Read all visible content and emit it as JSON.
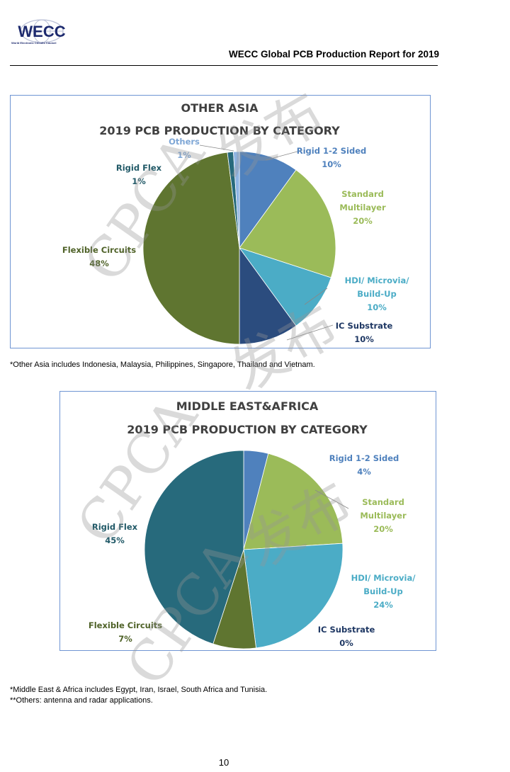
{
  "header": {
    "logo_text": "WECC",
    "logo_subtitle": "World Electronic Circuits Council",
    "title": "WECC Global PCB Production Report for 2019"
  },
  "watermark": {
    "text1": "CPCA",
    "text2": "发布"
  },
  "colors": {
    "rigid12": "#4F81BD",
    "standard": "#9BBB59",
    "hdi": "#4BACC6",
    "ic": "#2B4C7E",
    "flex": "#5F7530",
    "rigidflex": "#276A7C",
    "others": "#8EB4E3"
  },
  "chart_data": [
    {
      "type": "pie",
      "title": "OTHER ASIA",
      "subtitle": "2019 PCB PRODUCTION BY CATEGORY",
      "slices": [
        {
          "key": "rigid12",
          "name": "Rigid 1-2 Sided",
          "value": 10,
          "label": "10%"
        },
        {
          "key": "standard",
          "name": "Standard Multilayer",
          "name_lines": [
            "Standard",
            "Multilayer"
          ],
          "value": 20,
          "label": "20%"
        },
        {
          "key": "hdi",
          "name": "HDI/ Microvia/ Build-Up",
          "name_lines": [
            "HDI/ Microvia/",
            "Build-Up"
          ],
          "value": 10,
          "label": "10%"
        },
        {
          "key": "ic",
          "name": "IC Substrate",
          "value": 10,
          "label": "10%"
        },
        {
          "key": "flex",
          "name": "Flexible Circuits",
          "value": 48,
          "label": "48%"
        },
        {
          "key": "rigidflex",
          "name": "Rigid Flex",
          "value": 1,
          "label": "1%"
        },
        {
          "key": "others",
          "name": "Others",
          "value": 1,
          "label": "1%"
        }
      ]
    },
    {
      "type": "pie",
      "title": "MIDDLE EAST&AFRICA",
      "subtitle": "2019 PCB PRODUCTION BY CATEGORY",
      "slices": [
        {
          "key": "rigid12",
          "name": "Rigid 1-2 Sided",
          "value": 4,
          "label": "4%"
        },
        {
          "key": "standard",
          "name": "Standard Multilayer",
          "name_lines": [
            "Standard",
            "Multilayer"
          ],
          "value": 20,
          "label": "20%"
        },
        {
          "key": "hdi",
          "name": "HDI/ Microvia/ Build-Up",
          "name_lines": [
            "HDI/ Microvia/",
            "Build-Up"
          ],
          "value": 24,
          "label": "24%"
        },
        {
          "key": "ic",
          "name": "IC Substrate",
          "value": 0,
          "label": "0%"
        },
        {
          "key": "flex",
          "name": "Flexible Circuits",
          "value": 7,
          "label": "7%"
        },
        {
          "key": "rigidflex",
          "name": "Rigid Flex",
          "value": 45,
          "label": "45%"
        }
      ]
    }
  ],
  "notes": {
    "other_asia": "*Other Asia includes Indonesia, Malaysia, Philippines, Singapore, Thailand and Vietnam.",
    "mea": "*Middle East & Africa includes Egypt, Iran, Israel, South Africa and Tunisia.",
    "others": "**Others: antenna and radar applications."
  },
  "page_number": "10"
}
